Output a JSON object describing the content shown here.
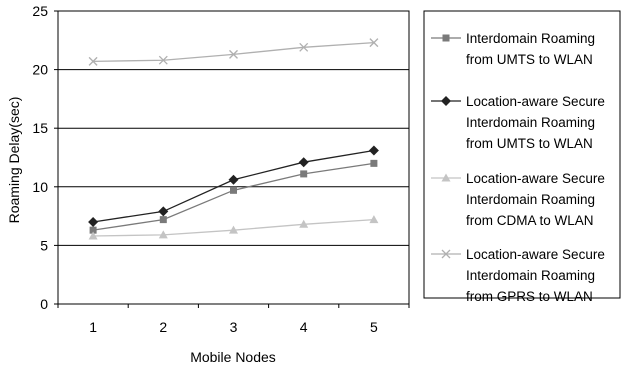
{
  "chart_data": {
    "type": "line",
    "title": "",
    "xlabel": "Mobile Nodes",
    "ylabel": "Roaming Delay(sec)",
    "x": [
      1,
      2,
      3,
      4,
      5
    ],
    "ylim": [
      0,
      25
    ],
    "yticks": [
      0,
      5,
      10,
      15,
      20,
      25
    ],
    "grid": "horizontal",
    "legend_position": "right",
    "series": [
      {
        "name": "Interdomain Roaming from UMTS to WLAN",
        "legend_lines": [
          "Interdomain Roaming",
          "from UMTS to WLAN"
        ],
        "values": [
          6.3,
          7.2,
          9.7,
          11.1,
          12.0
        ],
        "marker": "square",
        "color": "#7a7a7a"
      },
      {
        "name": "Location-aware Secure Interdomain Roaming from UMTS to WLAN",
        "legend_lines": [
          "Location-aware Secure",
          "Interdomain Roaming",
          "from UMTS to WLAN"
        ],
        "values": [
          7.0,
          7.9,
          10.6,
          12.1,
          13.1
        ],
        "marker": "diamond",
        "color": "#222222"
      },
      {
        "name": "Location-aware Secure Interdomain Roaming from CDMA to WLAN",
        "legend_lines": [
          "Location-aware Secure",
          "Interdomain Roaming",
          "from CDMA to WLAN"
        ],
        "values": [
          5.8,
          5.9,
          6.3,
          6.8,
          7.2
        ],
        "marker": "triangle",
        "color": "#c4c4c4"
      },
      {
        "name": "Location-aware Secure Interdomain Roaming from GPRS to WLAN",
        "legend_lines": [
          "Location-aware Secure",
          "Interdomain Roaming",
          "from GPRS to WLAN"
        ],
        "values": [
          20.7,
          20.8,
          21.3,
          21.9,
          22.3
        ],
        "marker": "x",
        "color": "#b0b0b0"
      }
    ]
  }
}
